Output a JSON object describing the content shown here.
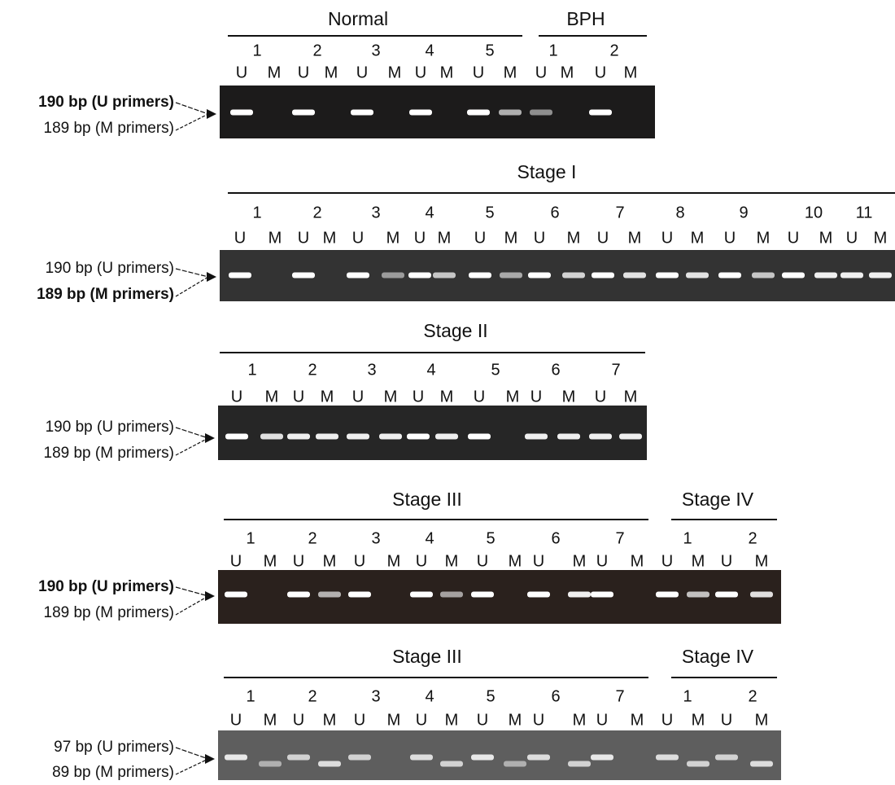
{
  "panels": [
    {
      "groups": [
        {
          "title": "Normal",
          "samples": [
            {
              "number": "1",
              "lanes": [
                "U",
                "M"
              ]
            },
            {
              "number": "2",
              "lanes": [
                "U",
                "M"
              ]
            },
            {
              "number": "3",
              "lanes": [
                "U",
                "M"
              ]
            },
            {
              "number": "4",
              "lanes": [
                "U",
                "M"
              ]
            },
            {
              "number": "5",
              "lanes": [
                "U",
                "M"
              ]
            }
          ]
        },
        {
          "title": "BPH",
          "samples": [
            {
              "number": "1",
              "lanes": [
                "U",
                "M"
              ]
            },
            {
              "number": "2",
              "lanes": [
                "U",
                "M"
              ]
            }
          ]
        }
      ],
      "bands": {
        "upper": "190 bp (U primers)",
        "lower": "189 bp (M primers)"
      }
    },
    {
      "groups": [
        {
          "title": "Stage I",
          "samples": [
            {
              "number": "1",
              "lanes": [
                "U",
                "M"
              ]
            },
            {
              "number": "2",
              "lanes": [
                "U",
                "M"
              ]
            },
            {
              "number": "3",
              "lanes": [
                "U",
                "M"
              ]
            },
            {
              "number": "4",
              "lanes": [
                "U",
                "M"
              ]
            },
            {
              "number": "5",
              "lanes": [
                "U",
                "M"
              ]
            },
            {
              "number": "6",
              "lanes": [
                "U",
                "M"
              ]
            },
            {
              "number": "7",
              "lanes": [
                "U",
                "M"
              ]
            },
            {
              "number": "8",
              "lanes": [
                "U",
                "M"
              ]
            },
            {
              "number": "9",
              "lanes": [
                "U",
                "M"
              ]
            },
            {
              "number": "10",
              "lanes": [
                "U",
                "M"
              ]
            },
            {
              "number": "11",
              "lanes": [
                "U",
                "M"
              ]
            }
          ]
        }
      ],
      "bands": {
        "upper": "190 bp (U primers)",
        "lower": "189 bp (M primers)"
      }
    },
    {
      "groups": [
        {
          "title": "Stage II",
          "samples": [
            {
              "number": "1",
              "lanes": [
                "U",
                "M"
              ]
            },
            {
              "number": "2",
              "lanes": [
                "U",
                "M"
              ]
            },
            {
              "number": "3",
              "lanes": [
                "U",
                "M"
              ]
            },
            {
              "number": "4",
              "lanes": [
                "U",
                "M"
              ]
            },
            {
              "number": "5",
              "lanes": [
                "U",
                "M"
              ]
            },
            {
              "number": "6",
              "lanes": [
                "U",
                "M"
              ]
            },
            {
              "number": "7",
              "lanes": [
                "U",
                "M"
              ]
            }
          ]
        }
      ],
      "bands": {
        "upper": "190 bp (U primers)",
        "lower": "189 bp (M primers)"
      }
    },
    {
      "groups": [
        {
          "title": "Stage III",
          "samples": [
            {
              "number": "1",
              "lanes": [
                "U",
                "M"
              ]
            },
            {
              "number": "2",
              "lanes": [
                "U",
                "M"
              ]
            },
            {
              "number": "3",
              "lanes": [
                "U",
                "M"
              ]
            },
            {
              "number": "4",
              "lanes": [
                "U",
                "M"
              ]
            },
            {
              "number": "5",
              "lanes": [
                "U",
                "M"
              ]
            },
            {
              "number": "6",
              "lanes": [
                "U",
                "M"
              ]
            },
            {
              "number": "7",
              "lanes": [
                "U",
                "M"
              ]
            }
          ]
        },
        {
          "title": "Stage IV",
          "samples": [
            {
              "number": "1",
              "lanes": [
                "U",
                "M"
              ]
            },
            {
              "number": "2",
              "lanes": [
                "U",
                "M"
              ]
            }
          ]
        }
      ],
      "bands": {
        "upper": "190 bp (U primers)",
        "lower": "189 bp (M primers)"
      }
    },
    {
      "groups": [
        {
          "title": "Stage III",
          "samples": [
            {
              "number": "1",
              "lanes": [
                "U",
                "M"
              ]
            },
            {
              "number": "2",
              "lanes": [
                "U",
                "M"
              ]
            },
            {
              "number": "3",
              "lanes": [
                "U",
                "M"
              ]
            },
            {
              "number": "4",
              "lanes": [
                "U",
                "M"
              ]
            },
            {
              "number": "5",
              "lanes": [
                "U",
                "M"
              ]
            },
            {
              "number": "6",
              "lanes": [
                "U",
                "M"
              ]
            },
            {
              "number": "7",
              "lanes": [
                "U",
                "M"
              ]
            }
          ]
        },
        {
          "title": "Stage IV",
          "samples": [
            {
              "number": "1",
              "lanes": [
                "U",
                "M"
              ]
            },
            {
              "number": "2",
              "lanes": [
                "U",
                "M"
              ]
            }
          ]
        }
      ],
      "bands": {
        "upper": "97 bp (U primers)",
        "lower": "89 bp (M primers)"
      }
    }
  ]
}
